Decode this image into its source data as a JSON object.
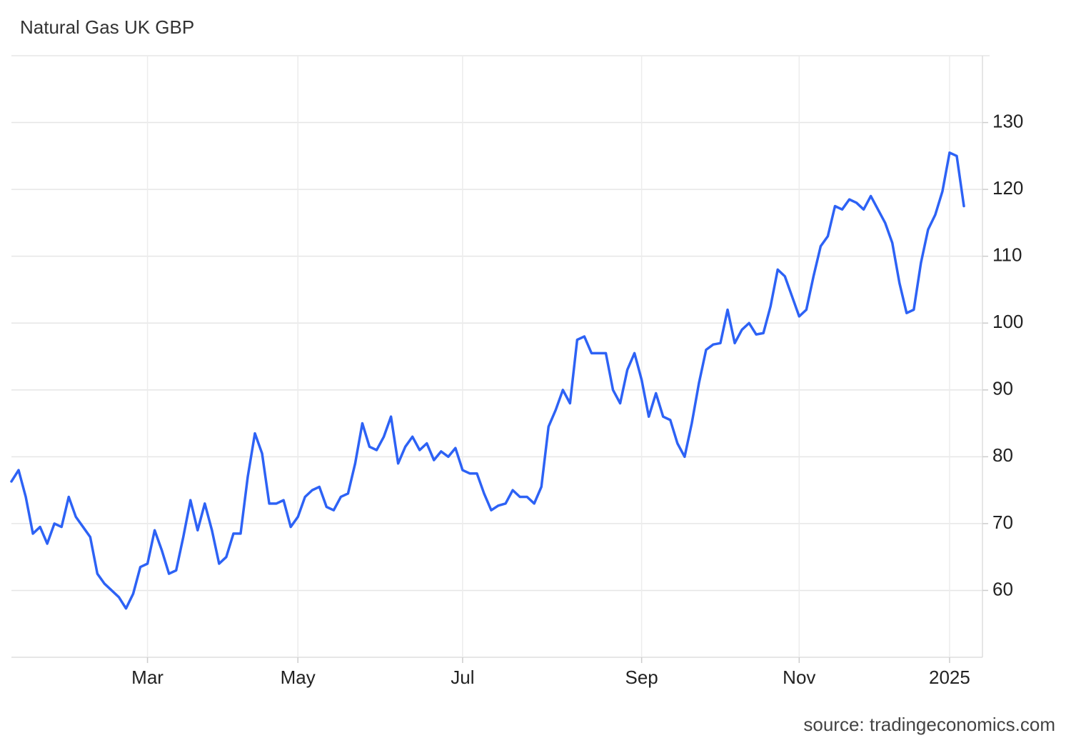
{
  "chart_data": {
    "type": "line",
    "title": "Natural Gas UK GBP",
    "source": "source: tradingeconomics.com",
    "color": "#2d62f5",
    "ylim": [
      50,
      140
    ],
    "yticks": [
      60,
      70,
      80,
      90,
      100,
      110,
      120,
      130
    ],
    "grid": true,
    "categories": [
      null,
      null,
      null,
      null,
      null,
      null,
      null,
      null,
      null,
      null,
      null,
      null,
      null,
      null,
      null,
      null,
      null,
      null,
      null,
      "Mar",
      null,
      null,
      null,
      null,
      null,
      null,
      null,
      null,
      null,
      null,
      null,
      null,
      null,
      null,
      null,
      null,
      null,
      null,
      null,
      null,
      "May",
      null,
      null,
      null,
      null,
      null,
      null,
      null,
      null,
      null,
      null,
      null,
      null,
      null,
      null,
      null,
      null,
      null,
      null,
      null,
      null,
      null,
      null,
      "Jul",
      null,
      null,
      null,
      null,
      null,
      null,
      null,
      null,
      null,
      null,
      null,
      null,
      null,
      null,
      null,
      null,
      null,
      null,
      null,
      null,
      null,
      null,
      null,
      null,
      "Sep",
      null,
      null,
      null,
      null,
      null,
      null,
      null,
      null,
      null,
      null,
      null,
      null,
      null,
      null,
      null,
      null,
      null,
      null,
      null,
      null,
      null,
      "Nov",
      null,
      null,
      null,
      null,
      null,
      null,
      null,
      null,
      null,
      null,
      null,
      null,
      null,
      null,
      null,
      null,
      null,
      null,
      null,
      null,
      "2025",
      null,
      null
    ],
    "values": [
      76.3,
      78,
      74,
      68.5,
      69.5,
      67,
      70,
      69.5,
      74,
      71,
      69.5,
      68,
      62.5,
      61,
      60,
      59,
      57.3,
      59.5,
      63.5,
      64,
      69,
      66,
      62.5,
      63,
      68,
      73.5,
      69,
      73,
      69,
      64,
      65,
      68.5,
      68.5,
      77,
      83.5,
      80.5,
      73,
      73,
      73.5,
      69.5,
      71,
      74,
      75,
      75.5,
      72.5,
      72,
      74,
      74.5,
      79,
      85,
      81.5,
      81,
      83,
      86,
      79,
      81.5,
      83,
      81,
      82,
      79.5,
      80.8,
      80,
      81.3,
      78,
      77.5,
      77.5,
      74.5,
      72,
      72.7,
      73,
      75,
      74,
      74,
      73,
      75.5,
      84.5,
      87,
      90,
      88,
      97.5,
      98,
      95.5,
      95.5,
      95.5,
      90,
      88,
      93,
      95.5,
      91.5,
      86,
      89.5,
      86,
      85.5,
      82,
      80,
      85,
      91,
      96,
      96.8,
      97,
      102,
      97,
      99,
      100,
      98.3,
      98.5,
      102.5,
      108,
      107,
      104,
      101,
      102,
      107,
      111.5,
      113,
      117.5,
      117,
      118.5,
      118,
      117,
      119,
      117,
      115,
      112,
      106,
      101.5,
      102,
      109,
      114,
      116.2,
      119.7,
      125.5,
      125,
      117.5
    ]
  }
}
